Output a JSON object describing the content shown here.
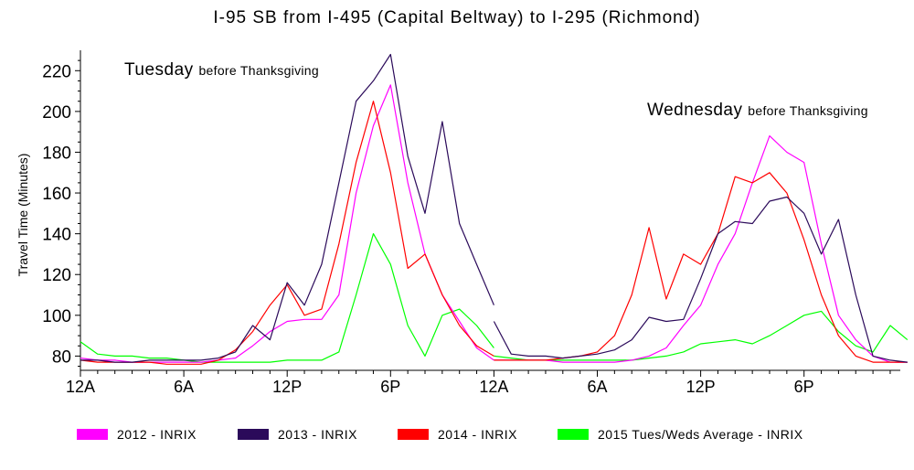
{
  "chart_data": {
    "type": "line",
    "title": "I-95 SB from I-495 (Capital Beltway) to I-295 (Richmond)",
    "ylabel": "Travel Time (Minutes)",
    "xlabel": "",
    "ylim": [
      73,
      230
    ],
    "yticks": [
      80,
      100,
      120,
      140,
      160,
      180,
      200,
      220
    ],
    "x_hours": [
      0,
      1,
      2,
      3,
      4,
      5,
      6,
      7,
      8,
      9,
      10,
      11,
      12,
      13,
      14,
      15,
      16,
      17,
      18,
      19,
      20,
      21,
      22,
      23,
      24,
      24.5,
      25,
      26,
      27,
      28,
      29,
      30,
      31,
      32,
      33,
      34,
      35,
      36,
      37,
      38,
      39,
      40,
      41,
      42,
      43,
      44,
      45,
      46,
      47,
      48
    ],
    "xticks": [
      {
        "hour": 0,
        "label": "12A"
      },
      {
        "hour": 6,
        "label": "6A"
      },
      {
        "hour": 12,
        "label": "12P"
      },
      {
        "hour": 18,
        "label": "6P"
      },
      {
        "hour": 24,
        "label": "12A"
      },
      {
        "hour": 30,
        "label": "6A"
      },
      {
        "hour": 36,
        "label": "12P"
      },
      {
        "hour": 42,
        "label": "6P"
      }
    ],
    "annotations": [
      {
        "id": "tuesday",
        "main": "Tuesday",
        "small": "before Thanksgiving"
      },
      {
        "id": "wednesday",
        "main": "Wednesday",
        "small": "before Thanksgiving"
      }
    ],
    "series": [
      {
        "name": "2012 - INRIX",
        "color": "#ff00ff",
        "tuesday": [
          79,
          78,
          78,
          77,
          77,
          77,
          77,
          77,
          78,
          79,
          85,
          92,
          97,
          98,
          98,
          110,
          160,
          193,
          213,
          165,
          130,
          110,
          97,
          84,
          78
        ],
        "wednesday": [
          78,
          78,
          78,
          78,
          77,
          77,
          77,
          77,
          78,
          80,
          84,
          95,
          105,
          125,
          140,
          165,
          188,
          180,
          175,
          135,
          100,
          88,
          80,
          77,
          77
        ]
      },
      {
        "name": "2013 - INRIX",
        "color": "#2b0a5a",
        "tuesday": [
          78,
          78,
          77,
          77,
          78,
          78,
          78,
          78,
          79,
          82,
          95,
          88,
          116,
          105,
          125,
          165,
          205,
          215,
          228,
          178,
          150,
          195,
          145,
          125,
          105
        ],
        "wednesday": [
          97,
          81,
          80,
          80,
          79,
          80,
          81,
          83,
          88,
          99,
          97,
          98,
          118,
          140,
          146,
          145,
          156,
          158,
          150,
          130,
          147,
          110,
          80,
          78,
          77
        ]
      },
      {
        "name": "2014 - INRIX",
        "color": "#ff0000",
        "tuesday": [
          78,
          77,
          77,
          77,
          77,
          76,
          76,
          76,
          78,
          83,
          92,
          105,
          115,
          100,
          103,
          135,
          175,
          205,
          170,
          123,
          130,
          110,
          95,
          85,
          80
        ],
        "wednesday": [
          78,
          78,
          78,
          78,
          79,
          80,
          82,
          90,
          110,
          143,
          108,
          130,
          125,
          140,
          168,
          165,
          170,
          160,
          137,
          110,
          90,
          80,
          77,
          77,
          77
        ]
      },
      {
        "name": "2015 Tues/Weds Average - INRIX",
        "color": "#00ff00",
        "tuesday": [
          87,
          81,
          80,
          80,
          79,
          79,
          78,
          77,
          77,
          77,
          77,
          77,
          78,
          78,
          78,
          82,
          110,
          140,
          125,
          95,
          80,
          100,
          103,
          95,
          84
        ],
        "wednesday": [
          80,
          79,
          78,
          78,
          78,
          78,
          78,
          78,
          78,
          79,
          80,
          82,
          86,
          87,
          88,
          86,
          90,
          95,
          100,
          102,
          92,
          85,
          82,
          95,
          88
        ]
      }
    ]
  }
}
